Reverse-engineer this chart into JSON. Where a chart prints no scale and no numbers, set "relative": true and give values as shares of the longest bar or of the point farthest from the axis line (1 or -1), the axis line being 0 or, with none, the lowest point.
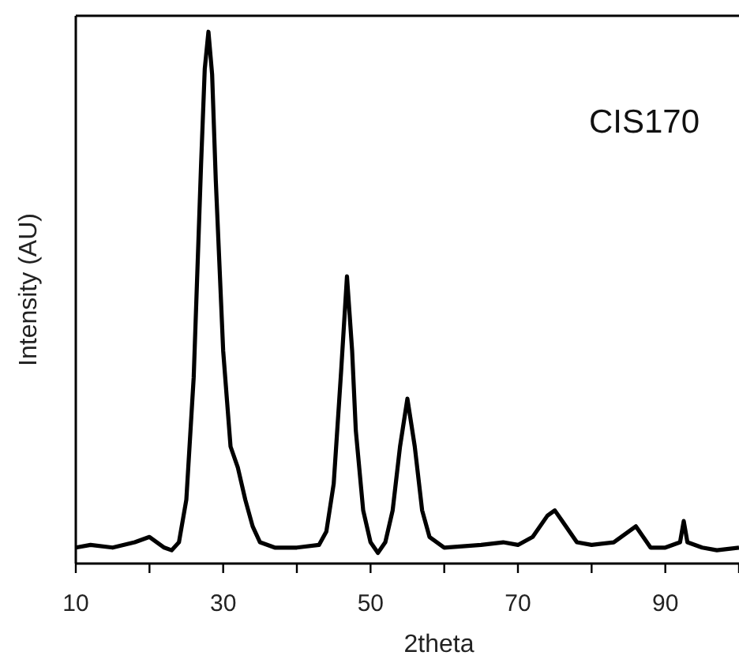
{
  "chart_data": {
    "type": "line",
    "relative": true,
    "xlabel": "2theta",
    "ylabel": "Intensity (AU)",
    "annotations": [
      "CIS170"
    ],
    "xlim": [
      10,
      100
    ],
    "xticks": [
      10,
      {
        "value": 20,
        "label": null
      },
      30,
      {
        "value": 40,
        "label": null
      },
      50,
      {
        "value": 60,
        "label": null
      },
      70,
      {
        "value": 80,
        "label": null
      },
      90,
      {
        "value": 100,
        "label": null
      }
    ],
    "grid": false,
    "marker": "none",
    "line_style": "solid",
    "series": [
      {
        "color": "#000000",
        "x": [
          10,
          12,
          15,
          18,
          20,
          21,
          22,
          23,
          24,
          25,
          26,
          27,
          27.5,
          28,
          28.5,
          29,
          30,
          31,
          32,
          33,
          34,
          35,
          37,
          40,
          43,
          44,
          45,
          46,
          46.8,
          47.5,
          48,
          49,
          50,
          51,
          52,
          53,
          54,
          55,
          56,
          57,
          58,
          60,
          65,
          68,
          70,
          72,
          74,
          75,
          76,
          78,
          80,
          83,
          85,
          86,
          87,
          88,
          90,
          92,
          92.5,
          93,
          95,
          97,
          100
        ],
        "values": [
          0.03,
          0.035,
          0.03,
          0.04,
          0.05,
          0.04,
          0.03,
          0.025,
          0.04,
          0.12,
          0.35,
          0.75,
          0.93,
          1.0,
          0.92,
          0.72,
          0.4,
          0.22,
          0.18,
          0.12,
          0.07,
          0.04,
          0.03,
          0.03,
          0.035,
          0.06,
          0.15,
          0.36,
          0.54,
          0.4,
          0.25,
          0.1,
          0.04,
          0.02,
          0.04,
          0.1,
          0.22,
          0.31,
          0.22,
          0.1,
          0.05,
          0.03,
          0.035,
          0.04,
          0.035,
          0.05,
          0.09,
          0.1,
          0.08,
          0.04,
          0.035,
          0.04,
          0.06,
          0.07,
          0.05,
          0.03,
          0.03,
          0.04,
          0.08,
          0.04,
          0.03,
          0.025,
          0.03
        ]
      }
    ]
  }
}
